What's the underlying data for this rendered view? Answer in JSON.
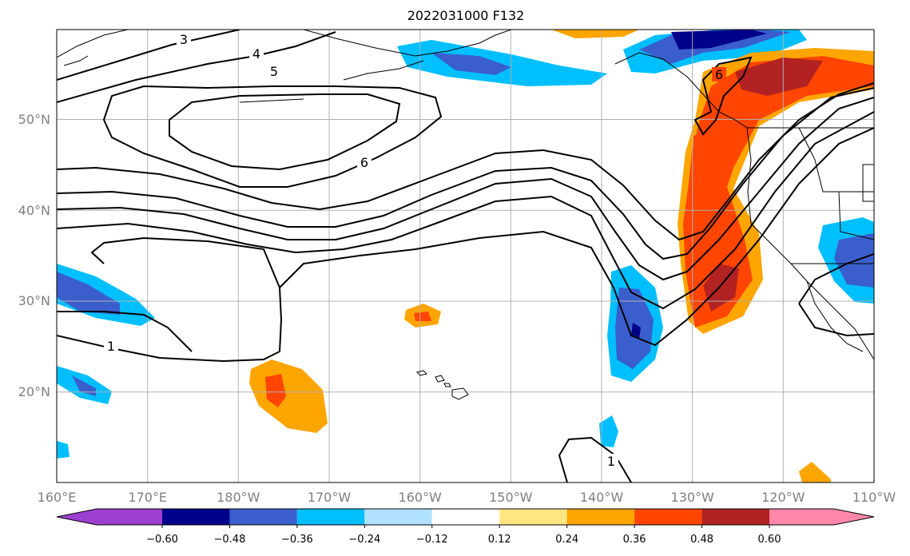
{
  "title": "2022031000 F132",
  "map": {
    "lon_range": [
      160,
      250
    ],
    "lat_range": [
      10.5,
      60
    ],
    "gridlines": true,
    "lon_ticks": [
      "160°E",
      "170°E",
      "180°W",
      "170°W",
      "160°W",
      "150°W",
      "140°W",
      "130°W",
      "120°W",
      "110°W"
    ],
    "lat_ticks": [
      "20°N",
      "30°N",
      "40°N",
      "50°N"
    ],
    "contour_labels": [
      "3",
      "4",
      "5",
      "6",
      "6",
      "1",
      "1"
    ]
  },
  "colorbar": {
    "orientation": "horizontal",
    "extend": "both",
    "tick_labels": [
      "−0.60",
      "−0.48",
      "−0.36",
      "−0.24",
      "−0.12",
      "0.12",
      "0.24",
      "0.36",
      "0.48",
      "0.60"
    ],
    "colors": [
      "#9c3fd0",
      "#00008b",
      "#3a5fcd",
      "#00bfff",
      "#b0e2ff",
      "#ffffff",
      "#ffe680",
      "#ffa500",
      "#ff4500",
      "#b22222",
      "#ff88aa"
    ]
  }
}
